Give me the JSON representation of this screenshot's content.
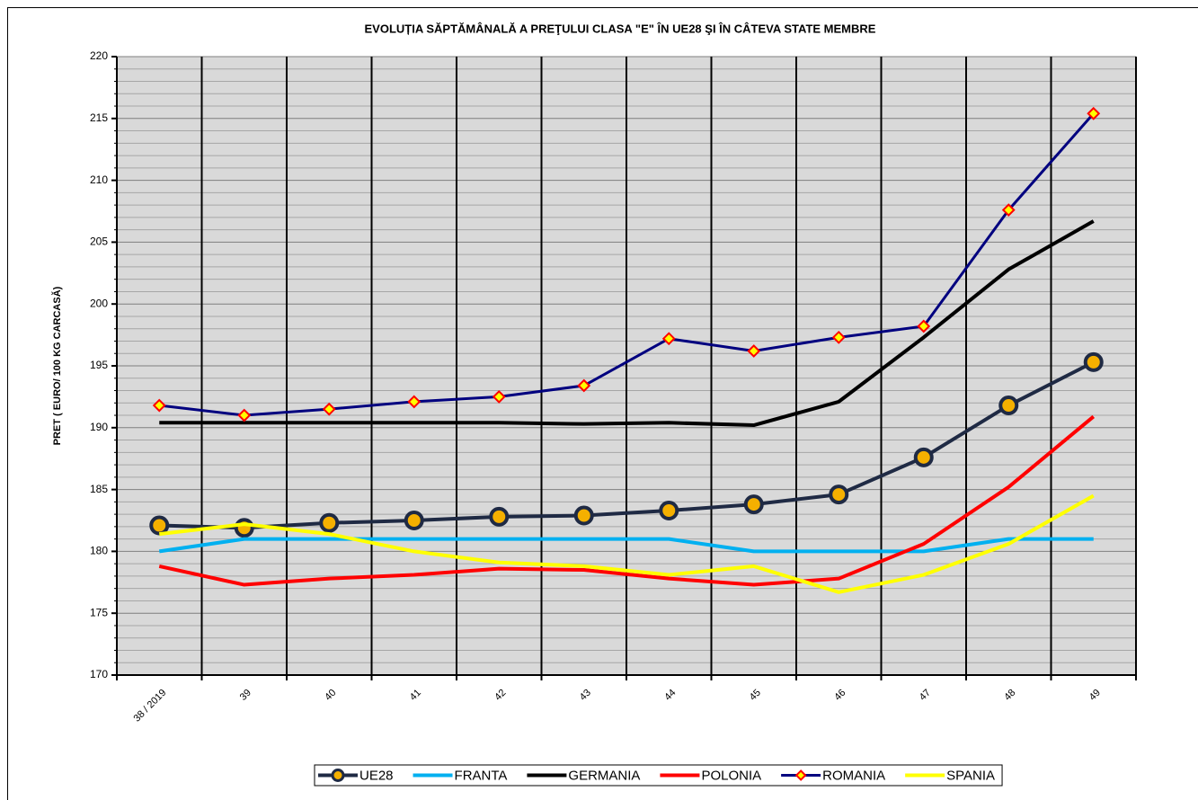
{
  "chart_data": {
    "type": "line",
    "title": "EVOLUȚIA SĂPTĂMÂNALĂ  A PREŢULUI CLASA \"E\"  ÎN  UE28 ŞI ÎN  CÂTEVA STATE MEMBRE",
    "y_label": "PRET ( EURO/ 100 KG CARCASĂ)",
    "categories": [
      "38 / 2019",
      "39",
      "40",
      "41",
      "42",
      "43",
      "44",
      "45",
      "46",
      "47",
      "48",
      "49"
    ],
    "ylim": [
      170,
      220
    ],
    "yticks": [
      170,
      175,
      180,
      185,
      190,
      195,
      200,
      205,
      210,
      215,
      220
    ],
    "grid": true,
    "legend": "bottom",
    "series": [
      {
        "name": "UE28",
        "color": "#1f2a44",
        "marker": "circle",
        "marker_color": "#f5b000",
        "values": [
          182.1,
          181.9,
          182.3,
          182.5,
          182.8,
          182.9,
          183.3,
          183.8,
          184.6,
          187.6,
          191.8,
          195.3
        ]
      },
      {
        "name": "FRANTA",
        "color": "#00b0f0",
        "values": [
          180,
          181,
          181,
          181,
          181,
          181,
          181,
          180,
          180,
          180,
          181,
          181
        ]
      },
      {
        "name": "GERMANIA",
        "color": "#000000",
        "values": [
          190.4,
          190.4,
          190.4,
          190.4,
          190.4,
          190.3,
          190.4,
          190.2,
          192.1,
          197.3,
          202.8,
          206.7
        ]
      },
      {
        "name": "POLONIA",
        "color": "#ff0000",
        "values": [
          178.8,
          177.3,
          177.8,
          178.1,
          178.6,
          178.5,
          177.8,
          177.3,
          177.8,
          180.6,
          185.2,
          190.9
        ]
      },
      {
        "name": "ROMANIA",
        "color": "#00007f",
        "marker": "diamond",
        "marker_color": "#ffff00",
        "values": [
          191.8,
          191.0,
          191.5,
          192.1,
          192.5,
          193.4,
          197.2,
          196.2,
          197.3,
          198.2,
          207.6,
          215.4
        ]
      },
      {
        "name": "SPANIA",
        "color": "#ffff00",
        "values": [
          181.4,
          182.2,
          181.4,
          180.0,
          179.1,
          178.8,
          178.1,
          178.8,
          176.7,
          178.1,
          180.6,
          184.5
        ]
      }
    ]
  }
}
